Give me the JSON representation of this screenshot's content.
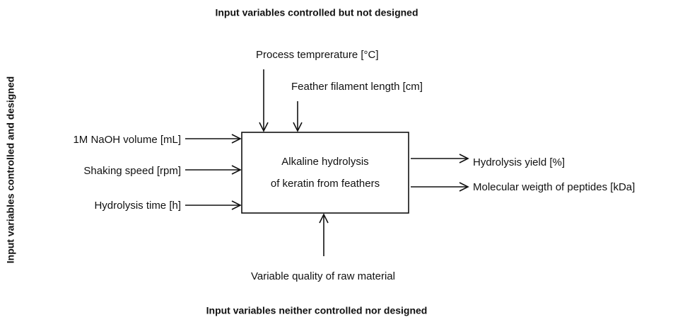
{
  "headings": {
    "top": "Input variables controlled but not designed",
    "left": "Input variables controlled and designed",
    "bottom": "Input variables neither controlled nor designed"
  },
  "process": {
    "line1": "Alkaline hydrolysis",
    "line2": "of keratin from feathers"
  },
  "inputs_left": [
    "1M NaOH volume [mL]",
    "Shaking speed [rpm]",
    "Hydrolysis time [h]"
  ],
  "inputs_top": [
    "Process temprerature [°C]",
    "Feather filament length [cm]"
  ],
  "input_bottom": "Variable quality of raw material",
  "outputs": [
    "Hydrolysis yield [%]",
    "Molecular weigth of peptides [kDa]"
  ]
}
